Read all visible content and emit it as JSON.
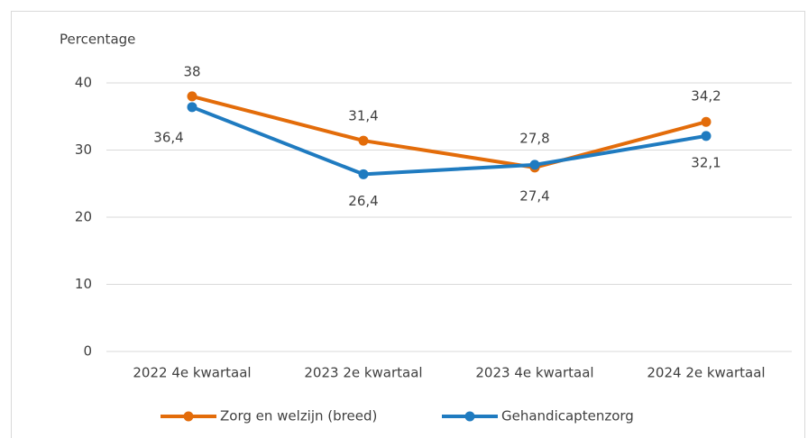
{
  "chart_data": {
    "type": "line",
    "y_label": "Percentage",
    "categories": [
      "2022 4e kwartaal",
      "2023 2e kwartaal",
      "2023 4e kwartaal",
      "2024 2e kwartaal"
    ],
    "series": [
      {
        "name": "Zorg en welzijn (breed)",
        "color": "#e36c0a",
        "values": [
          38,
          31.4,
          27.4,
          34.2
        ],
        "value_labels": [
          "38",
          "31,4",
          "27,4",
          "34,2"
        ]
      },
      {
        "name": "Gehandicaptenzorg",
        "color": "#1f7bc0",
        "values": [
          36.4,
          26.4,
          27.8,
          32.1
        ],
        "value_labels": [
          "36,4",
          "26,4",
          "27,8",
          "32,1"
        ]
      }
    ],
    "ylim": [
      0,
      40
    ],
    "yticks": [
      0,
      10,
      20,
      30,
      40
    ],
    "grid": true,
    "legend": "bottom"
  }
}
